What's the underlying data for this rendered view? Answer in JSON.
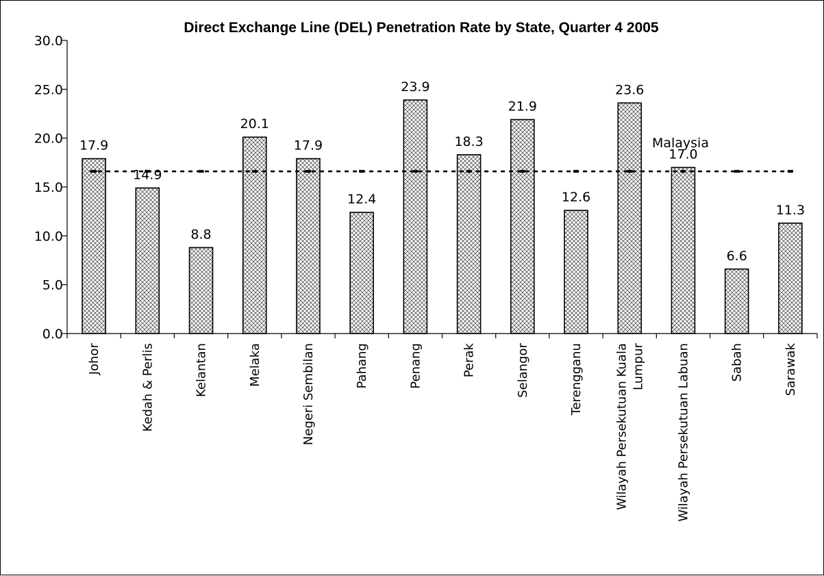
{
  "chart_data": {
    "type": "bar",
    "title": "Direct Exchange Line (DEL) Penetration Rate by State, Quarter 4 2005",
    "categories": [
      "Johor",
      "Kedah & Perlis",
      "Kelantan",
      "Melaka",
      "Negeri Sembilan",
      "Pahang",
      "Penang",
      "Perak",
      "Selangor",
      "Terengganu",
      [
        "Wilayah Persekutuan Kuala",
        "Lumpur"
      ],
      "Wilayah Persekutuan Labuan",
      "Sabah",
      "Sarawak"
    ],
    "values": [
      17.9,
      14.9,
      8.8,
      20.1,
      17.9,
      12.4,
      23.9,
      18.3,
      21.9,
      12.6,
      23.6,
      17.0,
      6.6,
      11.3
    ],
    "value_labels": [
      "17.9",
      "14.9",
      "8.8",
      "20.1",
      "17.9",
      "12.4",
      "23.9",
      "18.3",
      "21.9",
      "12.6",
      "23.6",
      "17.0",
      "6.6",
      "11.3"
    ],
    "yticks": [
      "0.0",
      "5.0",
      "10.0",
      "15.0",
      "20.0",
      "25.0",
      "30.0"
    ],
    "ylim": [
      0,
      30
    ],
    "reference_line": {
      "label": "Malaysia",
      "value": 16.6,
      "style": "dashed"
    },
    "bar_fill": "crosshatch",
    "grid": false,
    "legend": "none"
  }
}
